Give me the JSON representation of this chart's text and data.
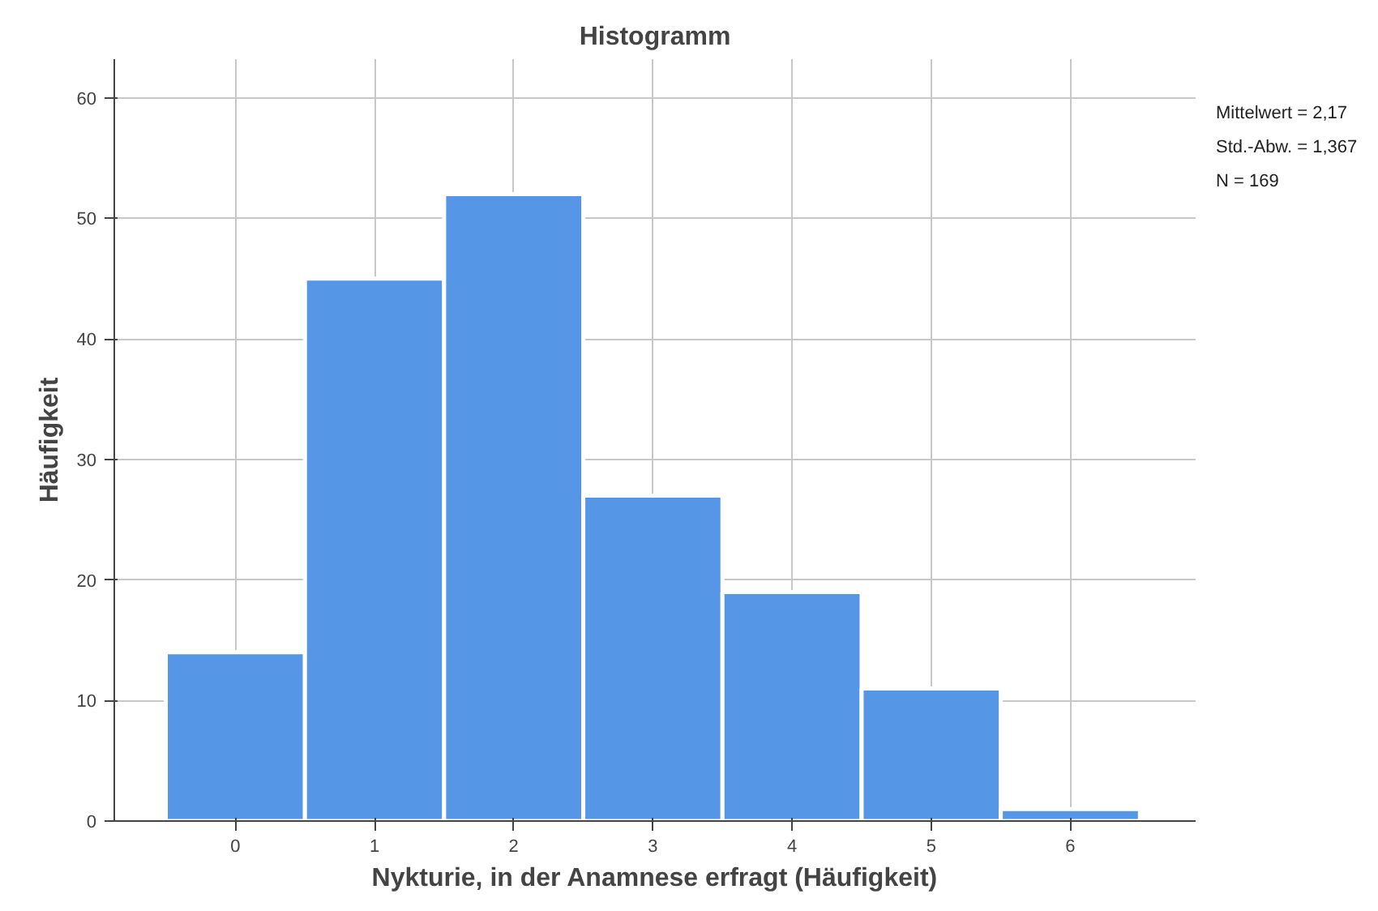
{
  "chart_data": {
    "type": "histogram",
    "title": "Histogramm",
    "xlabel": "Nykturie, in der Anamnese erfragt (Häufigkeit)",
    "ylabel": "Häufigkeit",
    "bins": [
      -0.5,
      0.5,
      1.5,
      2.5,
      3.5,
      4.5,
      5.5,
      6.5
    ],
    "values": [
      14,
      45,
      52,
      27,
      19,
      11,
      1
    ],
    "color": "#5596e6",
    "xlim": [
      -0.87,
      6.9
    ],
    "ylim": [
      0,
      63.2
    ],
    "xticks": [
      0,
      1,
      2,
      3,
      4,
      5,
      6
    ],
    "yticks": [
      0,
      10,
      20,
      30,
      40,
      50,
      60
    ],
    "grid": true,
    "annotations": [
      "Mittelwert = 2,17",
      "Std.-Abw. = 1,367",
      "N = 169"
    ]
  }
}
